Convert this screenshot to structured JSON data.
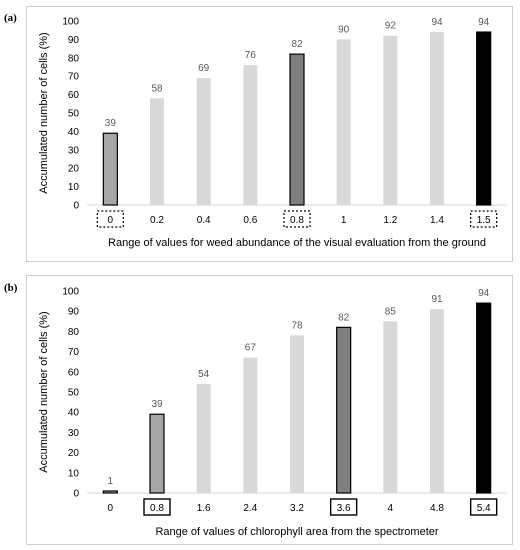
{
  "chart_data": [
    {
      "panel": "(a)",
      "type": "bar",
      "categories": [
        "0",
        "0.2",
        "0.4",
        "0.6",
        "0.8",
        "1",
        "1.2",
        "1.4",
        "1.5"
      ],
      "values": [
        39,
        58,
        69,
        76,
        82,
        90,
        92,
        94,
        94
      ],
      "data_labels": [
        "39",
        "58",
        "69",
        "76",
        "82",
        "90",
        "92",
        "94",
        "94"
      ],
      "bar_colors": [
        "#a6a6a6",
        "#d9d9d9",
        "#d9d9d9",
        "#d9d9d9",
        "#7f7f7f",
        "#d9d9d9",
        "#d9d9d9",
        "#d9d9d9",
        "#000000"
      ],
      "outlined_bars": [
        true,
        false,
        false,
        false,
        true,
        false,
        false,
        false,
        true
      ],
      "boxed_categories": [
        0,
        4,
        8
      ],
      "box_style": "dotted",
      "xlabel": "Range of values for weed abundance of the visual evaluation from the ground",
      "ylabel": "Accumulated number of cells (%)",
      "ylim": [
        0,
        100
      ],
      "yticks": [
        "0",
        "10",
        "20",
        "30",
        "40",
        "50",
        "60",
        "70",
        "80",
        "90",
        "100"
      ],
      "grid": false
    },
    {
      "panel": "(b)",
      "type": "bar",
      "categories": [
        "0",
        "0.8",
        "1.6",
        "2.4",
        "3.2",
        "3.6",
        "4",
        "4.8",
        "5.4"
      ],
      "values": [
        1,
        39,
        54,
        67,
        78,
        82,
        85,
        91,
        94
      ],
      "data_labels": [
        "1",
        "39",
        "54",
        "67",
        "78",
        "82",
        "85",
        "91",
        "94"
      ],
      "bar_colors": [
        "#a6a6a6",
        "#a6a6a6",
        "#d9d9d9",
        "#d9d9d9",
        "#d9d9d9",
        "#7f7f7f",
        "#d9d9d9",
        "#d9d9d9",
        "#000000"
      ],
      "outlined_bars": [
        true,
        true,
        false,
        false,
        false,
        true,
        false,
        false,
        true
      ],
      "boxed_categories": [
        1,
        5,
        8
      ],
      "box_style": "solid",
      "xlabel": "Range of values of chlorophyll area from the spectrometer",
      "ylabel": "Accumulated number of cells (%)",
      "ylim": [
        0,
        100
      ],
      "yticks": [
        "0",
        "10",
        "20",
        "30",
        "40",
        "50",
        "60",
        "70",
        "80",
        "90",
        "100"
      ],
      "grid": false
    }
  ]
}
